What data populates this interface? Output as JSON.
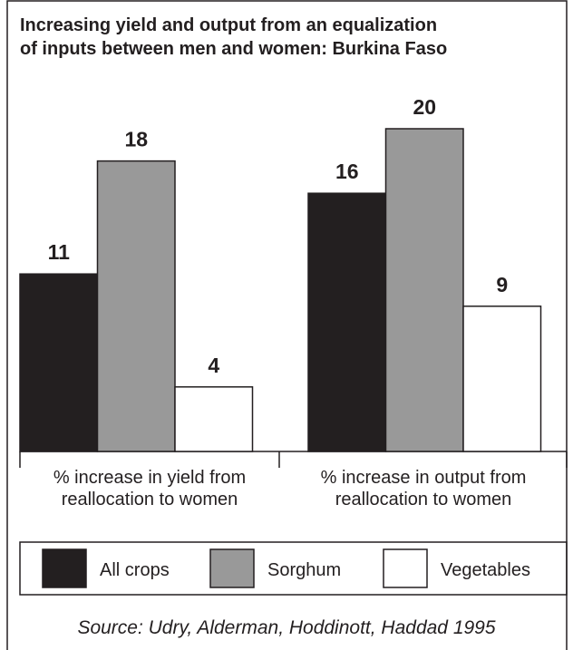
{
  "chart_data": {
    "type": "bar",
    "title": [
      "Increasing yield and output from an equalization",
      "of inputs between men and women: Burkina Faso"
    ],
    "categories": [
      "% increase in yield from reallocation to women",
      "% increase in output from reallocation to women"
    ],
    "series": [
      {
        "name": "All crops",
        "color": "#231f20",
        "values": [
          11,
          16
        ]
      },
      {
        "name": "Sorghum",
        "color": "#999999",
        "values": [
          18,
          20
        ]
      },
      {
        "name": "Vegetables",
        "color": "#ffffff",
        "values": [
          4,
          9
        ]
      }
    ],
    "source": "Source: Udry, Alderman, Hoddinott, Haddad 1995"
  }
}
